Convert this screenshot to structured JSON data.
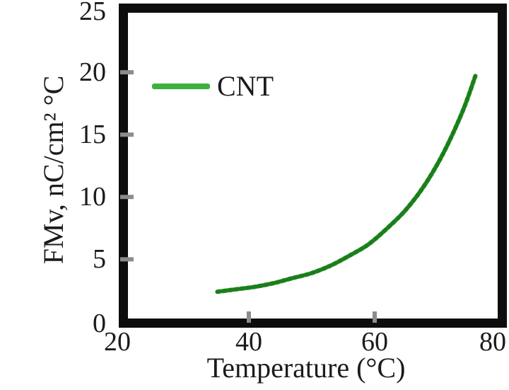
{
  "chart_data": {
    "type": "line",
    "title": "",
    "xlabel": "Temperature (°C)",
    "ylabel": "FMv, nC/cm² °C",
    "xlim": [
      20,
      80
    ],
    "ylim": [
      0,
      25
    ],
    "xticks": [
      20,
      40,
      60,
      80
    ],
    "yticks": [
      0,
      5,
      10,
      15,
      20,
      25
    ],
    "xtick_labels": [
      "20",
      "40",
      "60",
      "80"
    ],
    "ytick_labels": [
      "0",
      "5",
      "10",
      "15",
      "20",
      "25"
    ],
    "tick_marks": {
      "x": [
        40,
        60
      ],
      "y": [
        5,
        10,
        15,
        20
      ]
    },
    "grid": false,
    "legend": {
      "position": "upper-left",
      "entries": [
        "CNT"
      ]
    },
    "series": [
      {
        "name": "CNT",
        "x": [
          35,
          38,
          41,
          44,
          47,
          50,
          53,
          56,
          59,
          62,
          65,
          68,
          71,
          74,
          76
        ],
        "y": [
          2.4,
          2.6,
          2.8,
          3.1,
          3.5,
          3.9,
          4.5,
          5.3,
          6.2,
          7.5,
          9.0,
          11.0,
          13.6,
          16.9,
          19.7
        ]
      }
    ],
    "colors": {
      "curve": "#3cb13c",
      "curve_dark": "#1b7e1b",
      "axis_border": "#0d0d0d",
      "tick": "#8c8c8c",
      "text": "#1b1b1b"
    }
  }
}
